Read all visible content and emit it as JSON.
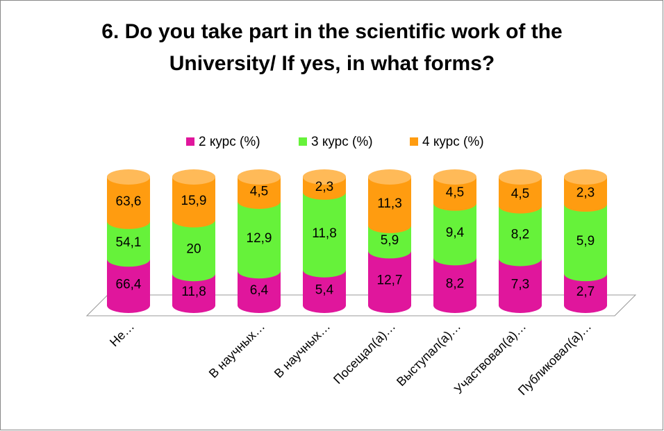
{
  "chart_data": {
    "type": "stacked-cylinder-100",
    "title": [
      "6. Do you take part in the scientific work of the",
      "University/ If yes, in what forms?"
    ],
    "categories": [
      "Не…",
      null,
      "В научных…",
      "В научных…",
      "Посещал(а)…",
      "Выступал(а)…",
      "Участвовал(а)…",
      "Публиковал(а)…"
    ],
    "series": [
      {
        "name": "2 курс (%)",
        "color": "#e0169c",
        "values": [
          66.4,
          11.8,
          6.4,
          5.4,
          12.7,
          8.2,
          7.3,
          2.7
        ],
        "value_labels": [
          "66,4",
          "11,8",
          "6,4",
          "5,4",
          "12,7",
          "8,2",
          "7,3",
          "2,7"
        ]
      },
      {
        "name": "3 курс (%)",
        "color": "#66f23a",
        "values": [
          54.1,
          20,
          12.9,
          11.8,
          5.9,
          9.4,
          8.2,
          5.9
        ],
        "value_labels": [
          "54,1",
          "20",
          "12,9",
          "11,8",
          "5,9",
          "9,4",
          "8,2",
          "5,9"
        ]
      },
      {
        "name": "4 курс (%)",
        "color": "#ff9c10",
        "values": [
          63.6,
          15.9,
          4.5,
          2.3,
          11.3,
          4.5,
          4.5,
          2.3
        ],
        "value_labels": [
          "63,6",
          "15,9",
          "4,5",
          "2,3",
          "11,3",
          "4,5",
          "4,5",
          "2,3"
        ]
      }
    ],
    "legend": "top"
  }
}
